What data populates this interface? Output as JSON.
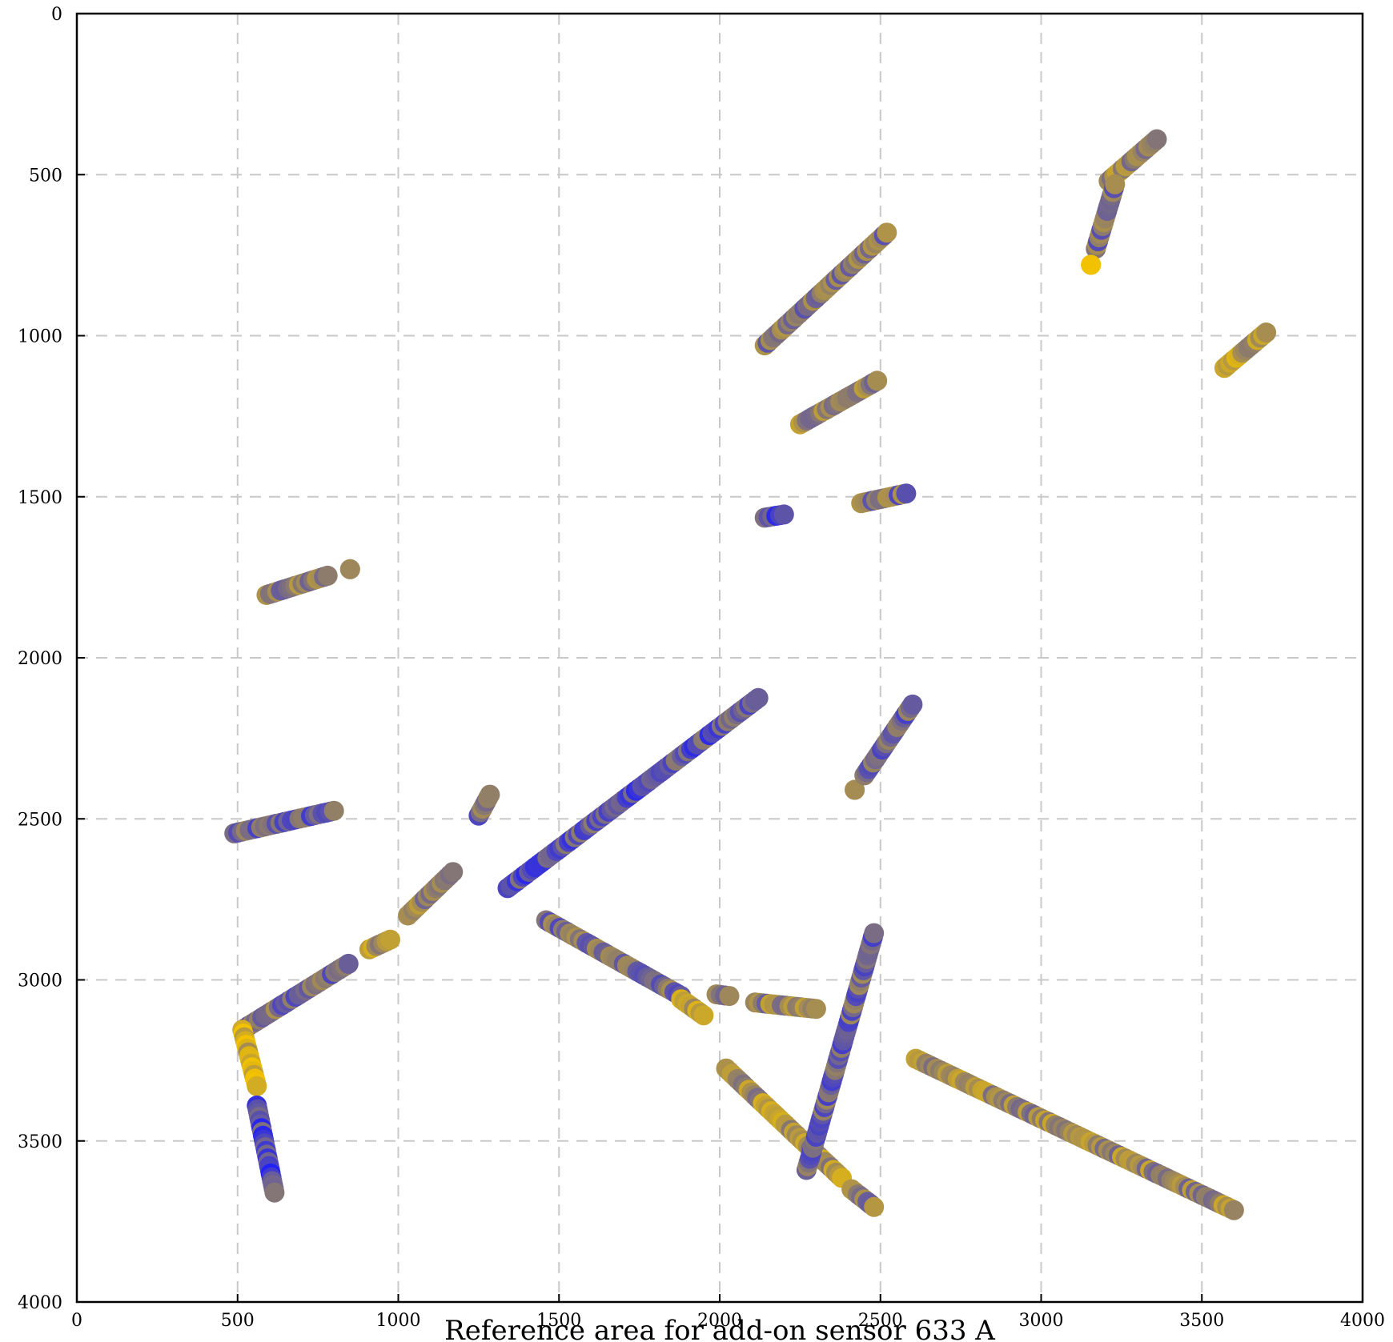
{
  "chart_data": {
    "type": "scatter",
    "xlim": [
      0,
      4000
    ],
    "ylim": [
      0,
      4000
    ],
    "y_inverted": true,
    "grid": true,
    "grid_style": "dashed",
    "xticks": [
      0,
      500,
      1000,
      1500,
      2000,
      2500,
      3000,
      3500,
      4000
    ],
    "yticks": [
      0,
      500,
      1000,
      1500,
      2000,
      2500,
      3000,
      3500,
      4000
    ],
    "xlabel": "Reference area for add-on sensor 633 A",
    "ylabel": "",
    "colors": {
      "blue": "#1a1aff",
      "mid": "#8a7a6f",
      "gold": "#f2c200"
    },
    "segments": [
      {
        "start": [
          490,
          2545
        ],
        "end": [
          800,
          2475
        ],
        "value": 0.35
      },
      {
        "start": [
          590,
          1805
        ],
        "end": [
          780,
          1745
        ],
        "value": 0.5
      },
      {
        "start": [
          850,
          1725
        ],
        "end": [
          850,
          1725
        ],
        "value": 0.5
      },
      {
        "start": [
          515,
          3155
        ],
        "end": [
          845,
          2950
        ],
        "value": 0.45
      },
      {
        "start": [
          515,
          3155
        ],
        "end": [
          560,
          3330
        ],
        "value": 0.85
      },
      {
        "start": [
          560,
          3390
        ],
        "end": [
          615,
          3660
        ],
        "value": 0.25
      },
      {
        "start": [
          910,
          2905
        ],
        "end": [
          975,
          2875
        ],
        "value": 0.7
      },
      {
        "start": [
          1030,
          2800
        ],
        "end": [
          1170,
          2665
        ],
        "value": 0.55
      },
      {
        "start": [
          1250,
          2490
        ],
        "end": [
          1285,
          2425
        ],
        "value": 0.4
      },
      {
        "start": [
          1340,
          2715
        ],
        "end": [
          2120,
          2125
        ],
        "value": 0.3
      },
      {
        "start": [
          1460,
          2815
        ],
        "end": [
          1880,
          3050
        ],
        "value": 0.45
      },
      {
        "start": [
          1880,
          3060
        ],
        "end": [
          1950,
          3110
        ],
        "value": 0.75
      },
      {
        "start": [
          1990,
          3045
        ],
        "end": [
          2030,
          3050
        ],
        "value": 0.55
      },
      {
        "start": [
          2110,
          3070
        ],
        "end": [
          2300,
          3090
        ],
        "value": 0.55
      },
      {
        "start": [
          2020,
          3275
        ],
        "end": [
          2380,
          3615
        ],
        "value": 0.65
      },
      {
        "start": [
          2410,
          3650
        ],
        "end": [
          2480,
          3705
        ],
        "value": 0.55
      },
      {
        "start": [
          2270,
          3590
        ],
        "end": [
          2480,
          2855
        ],
        "value": 0.4
      },
      {
        "start": [
          2610,
          3245
        ],
        "end": [
          3600,
          3715
        ],
        "value": 0.6
      },
      {
        "start": [
          2140,
          1030
        ],
        "end": [
          2520,
          680
        ],
        "value": 0.5
      },
      {
        "start": [
          2250,
          1275
        ],
        "end": [
          2490,
          1140
        ],
        "value": 0.55
      },
      {
        "start": [
          2140,
          1565
        ],
        "end": [
          2200,
          1555
        ],
        "value": 0.3
      },
      {
        "start": [
          2440,
          1520
        ],
        "end": [
          2580,
          1490
        ],
        "value": 0.45
      },
      {
        "start": [
          2420,
          2410
        ],
        "end": [
          2420,
          2410
        ],
        "value": 0.5
      },
      {
        "start": [
          2450,
          2365
        ],
        "end": [
          2600,
          2145
        ],
        "value": 0.35
      },
      {
        "start": [
          3210,
          520
        ],
        "end": [
          3360,
          390
        ],
        "value": 0.6
      },
      {
        "start": [
          3170,
          730
        ],
        "end": [
          3230,
          530
        ],
        "value": 0.45
      },
      {
        "start": [
          3155,
          780
        ],
        "end": [
          3155,
          780
        ],
        "value": 0.9
      },
      {
        "start": [
          3570,
          1100
        ],
        "end": [
          3700,
          990
        ],
        "value": 0.7
      }
    ]
  }
}
